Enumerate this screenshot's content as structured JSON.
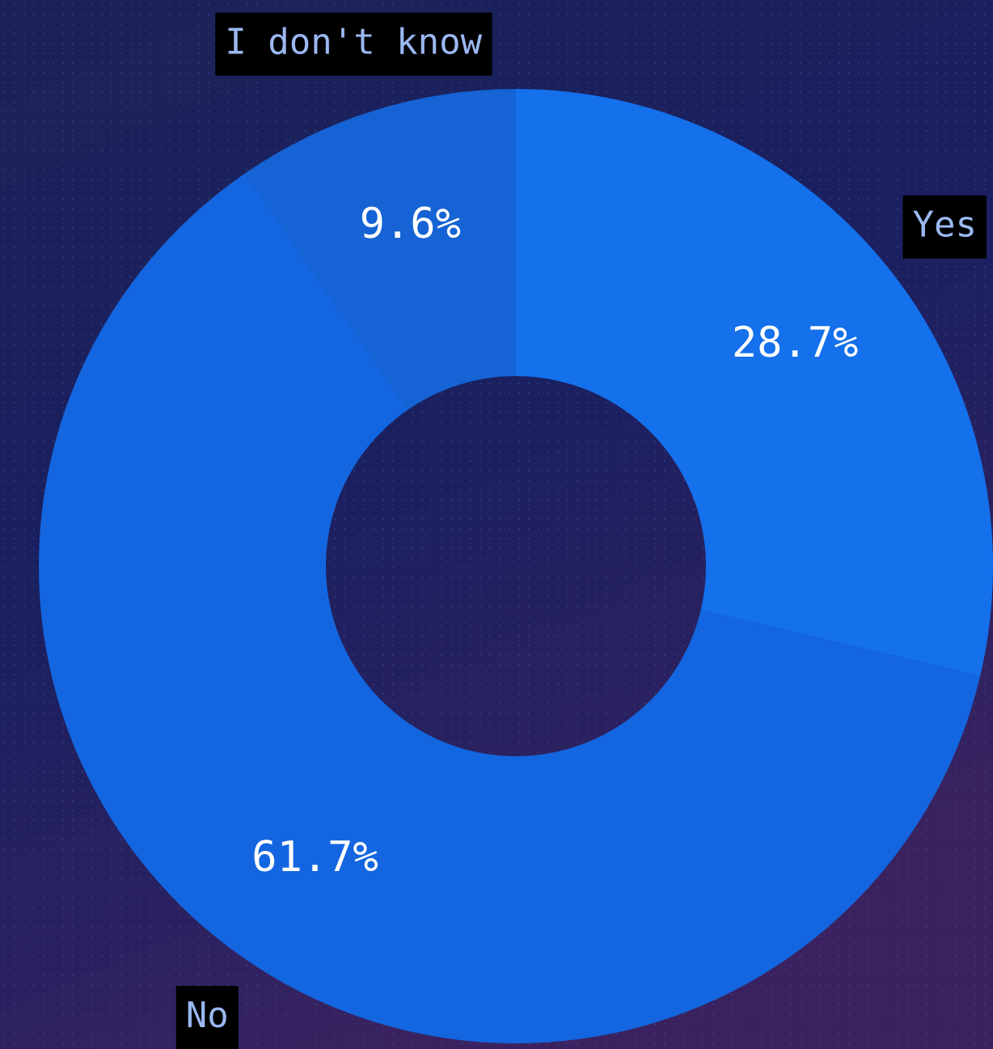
{
  "chart_data": {
    "type": "pie",
    "categories": [
      "Yes",
      "No",
      "I don't know"
    ],
    "values": [
      28.7,
      61.7,
      9.6
    ],
    "value_labels": [
      "28.7%",
      "61.7%",
      "9.6%"
    ],
    "colors": [
      "#1470eb",
      "#1366df",
      "#1563d4"
    ]
  }
}
